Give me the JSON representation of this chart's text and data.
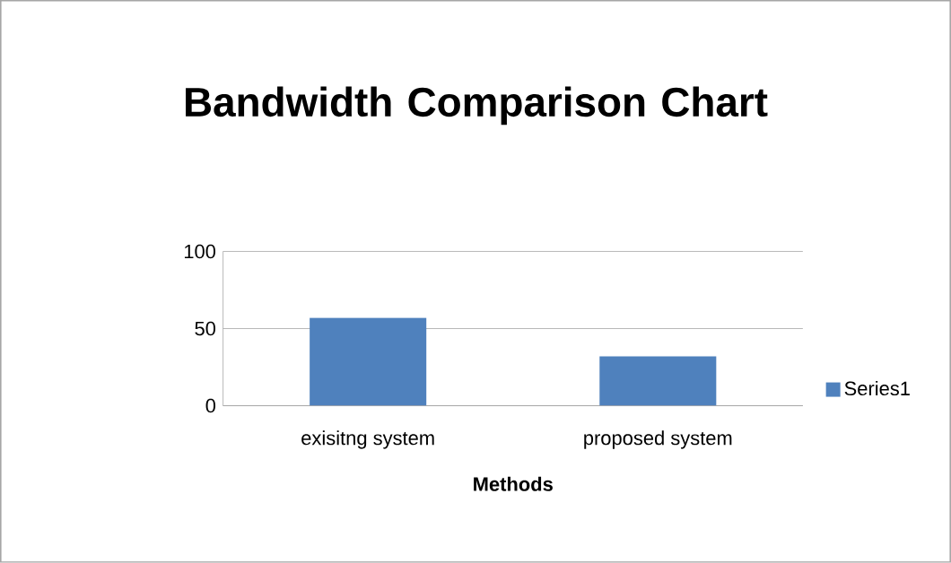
{
  "chart_data": {
    "type": "bar",
    "title": "Bandwidth Comparison Chart",
    "xlabel": "Methods",
    "categories": [
      "exisitng system",
      "proposed system"
    ],
    "series": [
      {
        "name": "Series1",
        "color": "#4f81bd",
        "values": [
          57,
          32
        ]
      }
    ],
    "ylim": [
      0,
      100
    ],
    "yticks": [
      0,
      50,
      100
    ],
    "grid": "y",
    "legend": "right"
  }
}
